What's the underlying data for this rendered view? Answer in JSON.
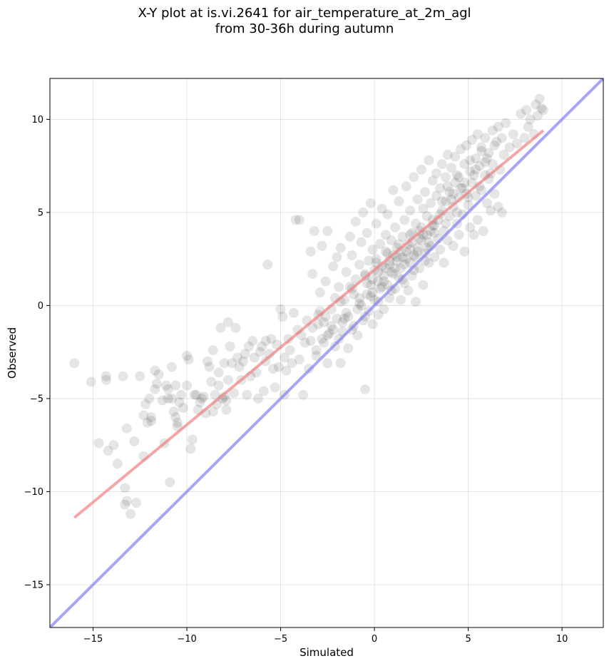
{
  "chart_data": {
    "type": "scatter",
    "title_line1": "X-Y plot at is.vi.2641 for air_temperature_at_2m_agl",
    "title_line2": "from 30-36h during autumn",
    "xlabel": "Simulated",
    "ylabel": "Observed",
    "xlim": [
      -17.3,
      12.2
    ],
    "ylim": [
      -17.3,
      12.2
    ],
    "xticks": [
      -15,
      -10,
      -5,
      0,
      5,
      10
    ],
    "yticks": [
      -15,
      -10,
      -5,
      0,
      5,
      10
    ],
    "xtick_labels": [
      "−15",
      "−10",
      "−5",
      "0",
      "5",
      "10"
    ],
    "ytick_labels": [
      "−15",
      "−10",
      "−5",
      "0",
      "5",
      "10"
    ],
    "grid": true,
    "point_color": "#000000",
    "point_alpha": 0.1,
    "fit_line": {
      "color": "#f08080",
      "x": [
        -16.0,
        9.0
      ],
      "y": [
        -11.4,
        9.4
      ]
    },
    "identity_line": {
      "color": "#8080f0",
      "x": [
        -17.3,
        12.2
      ],
      "y": [
        -17.3,
        12.2
      ]
    },
    "scatter_points": [
      [
        -16.0,
        -3.1
      ],
      [
        -15.1,
        -4.1
      ],
      [
        -14.7,
        -7.4
      ],
      [
        -14.3,
        -3.8
      ],
      [
        -14.3,
        -4.0
      ],
      [
        -14.2,
        -7.8
      ],
      [
        -13.9,
        -7.5
      ],
      [
        -13.7,
        -8.5
      ],
      [
        -13.4,
        -3.8
      ],
      [
        -13.2,
        -6.6
      ],
      [
        -13.3,
        -9.8
      ],
      [
        -13.3,
        -10.7
      ],
      [
        -13.2,
        -10.5
      ],
      [
        -13.0,
        -11.2
      ],
      [
        -12.8,
        -7.3
      ],
      [
        -12.7,
        -10.6
      ],
      [
        -12.5,
        -3.8
      ],
      [
        -12.3,
        -8.1
      ],
      [
        -12.3,
        -5.9
      ],
      [
        -12.2,
        -5.3
      ],
      [
        -12.1,
        -6.3
      ],
      [
        -12.0,
        -5.0
      ],
      [
        -11.9,
        -6.0
      ],
      [
        -11.9,
        -6.2
      ],
      [
        -11.7,
        -4.5
      ],
      [
        -11.7,
        -3.5
      ],
      [
        -11.6,
        -4.2
      ],
      [
        -11.5,
        -3.7
      ],
      [
        -11.3,
        -5.1
      ],
      [
        -11.2,
        -7.4
      ],
      [
        -11.1,
        -4.3
      ],
      [
        -11.0,
        -5.0
      ],
      [
        -11.0,
        -4.5
      ],
      [
        -10.9,
        -9.5
      ],
      [
        -10.8,
        -5.0
      ],
      [
        -10.8,
        -3.3
      ],
      [
        -10.7,
        -5.7
      ],
      [
        -10.6,
        -6.0
      ],
      [
        -10.6,
        -4.3
      ],
      [
        -10.5,
        -6.5
      ],
      [
        -10.5,
        -6.3
      ],
      [
        -10.4,
        -5.2
      ],
      [
        -10.3,
        -4.8
      ],
      [
        -10.2,
        -5.5
      ],
      [
        -10.0,
        -4.3
      ],
      [
        -10.0,
        -2.7
      ],
      [
        -9.9,
        -2.9
      ],
      [
        -9.8,
        -7.7
      ],
      [
        -9.7,
        -7.2
      ],
      [
        -9.6,
        -4.8
      ],
      [
        -9.5,
        -4.8
      ],
      [
        -9.4,
        -5.6
      ],
      [
        -9.3,
        -5.2
      ],
      [
        -9.2,
        -5.0
      ],
      [
        -9.1,
        -4.9
      ],
      [
        -9.0,
        -5.8
      ],
      [
        -8.9,
        -3.0
      ],
      [
        -8.8,
        -3.3
      ],
      [
        -8.7,
        -4.1
      ],
      [
        -8.6,
        -5.7
      ],
      [
        -8.6,
        -2.4
      ],
      [
        -8.5,
        -4.8
      ],
      [
        -8.4,
        -5.3
      ],
      [
        -8.3,
        -3.6
      ],
      [
        -8.3,
        -4.3
      ],
      [
        -8.2,
        -1.2
      ],
      [
        -8.1,
        -5.0
      ],
      [
        -8.0,
        -4.9
      ],
      [
        -8.0,
        -3.1
      ],
      [
        -7.9,
        -5.1
      ],
      [
        -7.9,
        -5.6
      ],
      [
        -7.8,
        -0.9
      ],
      [
        -7.8,
        -4.0
      ],
      [
        -7.7,
        -2.2
      ],
      [
        -7.6,
        -3.1
      ],
      [
        -7.5,
        -4.7
      ],
      [
        -7.4,
        -1.2
      ],
      [
        -7.3,
        -2.8
      ],
      [
        -7.2,
        -3.3
      ],
      [
        -7.1,
        -4.0
      ],
      [
        -7.0,
        -3.0
      ],
      [
        -6.9,
        -2.6
      ],
      [
        -6.8,
        -4.8
      ],
      [
        -6.7,
        -2.2
      ],
      [
        -6.6,
        -3.8
      ],
      [
        -6.5,
        -1.9
      ],
      [
        -6.4,
        -2.8
      ],
      [
        -6.3,
        -3.6
      ],
      [
        -6.2,
        -5.0
      ],
      [
        -6.1,
        -2.5
      ],
      [
        -6.0,
        -2.2
      ],
      [
        -5.9,
        -4.6
      ],
      [
        -5.8,
        -1.9
      ],
      [
        -5.8,
        -3.0
      ],
      [
        -5.7,
        2.2
      ],
      [
        -5.6,
        -2.6
      ],
      [
        -5.5,
        -1.8
      ],
      [
        -5.4,
        -3.4
      ],
      [
        -5.3,
        -4.4
      ],
      [
        -5.2,
        -2.1
      ],
      [
        -5.1,
        -3.3
      ],
      [
        -5.0,
        -0.2
      ],
      [
        -4.9,
        -0.6
      ],
      [
        -4.8,
        -2.8
      ],
      [
        -4.8,
        -4.8
      ],
      [
        -4.7,
        -3.5
      ],
      [
        -4.6,
        -1.8
      ],
      [
        -4.5,
        -2.4
      ],
      [
        -4.4,
        -3.1
      ],
      [
        -4.3,
        -0.4
      ],
      [
        -4.2,
        4.6
      ],
      [
        -4.1,
        -1.3
      ],
      [
        -4.0,
        4.6
      ],
      [
        -4.0,
        -2.9
      ],
      [
        -3.9,
        -1.6
      ],
      [
        -3.8,
        -4.8
      ],
      [
        -3.7,
        -2.0
      ],
      [
        -3.6,
        -0.8
      ],
      [
        -3.5,
        -3.4
      ],
      [
        -3.4,
        2.9
      ],
      [
        -3.3,
        -1.2
      ],
      [
        -3.3,
        1.7
      ],
      [
        -3.2,
        4.0
      ],
      [
        -3.1,
        -2.7
      ],
      [
        -3.0,
        -0.5
      ],
      [
        -2.9,
        0.7
      ],
      [
        -2.8,
        3.2
      ],
      [
        -2.8,
        -1.8
      ],
      [
        -2.7,
        -0.9
      ],
      [
        -2.6,
        1.3
      ],
      [
        -2.5,
        -3.1
      ],
      [
        -2.5,
        4.0
      ],
      [
        -2.4,
        -1.5
      ],
      [
        -2.3,
        -0.2
      ],
      [
        -2.2,
        2.1
      ],
      [
        -2.1,
        -2.2
      ],
      [
        -2.0,
        -0.7
      ],
      [
        -2.0,
        2.6
      ],
      [
        -1.9,
        1.0
      ],
      [
        -1.8,
        -3.1
      ],
      [
        -1.8,
        3.1
      ],
      [
        -1.7,
        -1.4
      ],
      [
        -1.6,
        0.3
      ],
      [
        -1.5,
        1.8
      ],
      [
        -1.4,
        -2.3
      ],
      [
        -1.4,
        -0.6
      ],
      [
        -1.3,
        3.7
      ],
      [
        -1.2,
        2.7
      ],
      [
        -1.2,
        0.9
      ],
      [
        -1.1,
        -1.1
      ],
      [
        -1.0,
        4.5
      ],
      [
        -1.0,
        1.4
      ],
      [
        -0.9,
        -1.6
      ],
      [
        -0.8,
        0.1
      ],
      [
        -0.8,
        2.2
      ],
      [
        -0.7,
        3.4
      ],
      [
        -0.6,
        5.0
      ],
      [
        -0.6,
        -0.8
      ],
      [
        -0.5,
        1.6
      ],
      [
        -0.5,
        -4.5
      ],
      [
        -0.4,
        0.6
      ],
      [
        -0.4,
        3.9
      ],
      [
        -0.3,
        2.4
      ],
      [
        -0.3,
        -0.3
      ],
      [
        -0.2,
        1.1
      ],
      [
        -0.2,
        5.5
      ],
      [
        -0.1,
        3.0
      ],
      [
        -0.1,
        -1.0
      ],
      [
        0.0,
        1.9
      ],
      [
        0.0,
        0.3
      ],
      [
        0.1,
        4.4
      ],
      [
        0.1,
        2.5
      ],
      [
        0.2,
        1.3
      ],
      [
        0.2,
        -0.5
      ],
      [
        0.3,
        3.3
      ],
      [
        0.3,
        0.9
      ],
      [
        0.4,
        2.1
      ],
      [
        0.4,
        5.2
      ],
      [
        0.5,
        1.6
      ],
      [
        0.5,
        -0.2
      ],
      [
        0.6,
        2.9
      ],
      [
        0.6,
        3.8
      ],
      [
        0.7,
        1.1
      ],
      [
        0.7,
        4.9
      ],
      [
        0.8,
        2.2
      ],
      [
        0.8,
        0.4
      ],
      [
        0.9,
        3.5
      ],
      [
        0.9,
        1.8
      ],
      [
        1.0,
        2.7
      ],
      [
        1.0,
        6.2
      ],
      [
        1.1,
        0.9
      ],
      [
        1.1,
        4.2
      ],
      [
        1.2,
        2.4
      ],
      [
        1.2,
        3.1
      ],
      [
        1.3,
        1.5
      ],
      [
        1.3,
        5.6
      ],
      [
        1.4,
        2.0
      ],
      [
        1.4,
        0.3
      ],
      [
        1.5,
        3.7
      ],
      [
        1.5,
        2.6
      ],
      [
        1.6,
        4.6
      ],
      [
        1.6,
        1.2
      ],
      [
        1.7,
        2.9
      ],
      [
        1.7,
        6.4
      ],
      [
        1.8,
        3.3
      ],
      [
        1.8,
        0.8
      ],
      [
        1.9,
        2.3
      ],
      [
        1.9,
        5.1
      ],
      [
        2.0,
        3.9
      ],
      [
        2.0,
        1.6
      ],
      [
        2.1,
        2.7
      ],
      [
        2.1,
        6.9
      ],
      [
        2.2,
        4.4
      ],
      [
        2.2,
        0.2
      ],
      [
        2.3,
        3.1
      ],
      [
        2.3,
        5.7
      ],
      [
        2.4,
        2.0
      ],
      [
        2.4,
        4.0
      ],
      [
        2.5,
        3.5
      ],
      [
        2.5,
        7.3
      ],
      [
        2.6,
        1.1
      ],
      [
        2.6,
        5.2
      ],
      [
        2.7,
        2.8
      ],
      [
        2.7,
        6.1
      ],
      [
        2.8,
        3.8
      ],
      [
        2.8,
        4.8
      ],
      [
        2.9,
        2.3
      ],
      [
        2.9,
        7.8
      ],
      [
        3.0,
        3.2
      ],
      [
        3.0,
        5.5
      ],
      [
        3.1,
        4.3
      ],
      [
        3.1,
        6.7
      ],
      [
        3.2,
        2.6
      ],
      [
        3.2,
        3.9
      ],
      [
        3.3,
        5.9
      ],
      [
        3.3,
        7.1
      ],
      [
        3.4,
        4.6
      ],
      [
        3.5,
        3.0
      ],
      [
        3.5,
        6.3
      ],
      [
        3.6,
        5.1
      ],
      [
        3.6,
        7.6
      ],
      [
        3.7,
        4.0
      ],
      [
        3.7,
        2.3
      ],
      [
        3.8,
        6.9
      ],
      [
        3.8,
        5.6
      ],
      [
        3.9,
        3.5
      ],
      [
        3.9,
        8.1
      ],
      [
        4.0,
        4.8
      ],
      [
        4.0,
        6.1
      ],
      [
        4.1,
        7.4
      ],
      [
        4.2,
        3.2
      ],
      [
        4.2,
        5.3
      ],
      [
        4.3,
        6.6
      ],
      [
        4.3,
        8.0
      ],
      [
        4.4,
        4.4
      ],
      [
        4.4,
        7.0
      ],
      [
        4.5,
        3.8
      ],
      [
        4.5,
        5.8
      ],
      [
        4.6,
        8.4
      ],
      [
        4.6,
        6.3
      ],
      [
        4.7,
        4.9
      ],
      [
        4.8,
        7.6
      ],
      [
        4.8,
        2.9
      ],
      [
        4.9,
        6.0
      ],
      [
        4.9,
        8.6
      ],
      [
        5.0,
        5.4
      ],
      [
        5.1,
        7.2
      ],
      [
        5.1,
        4.2
      ],
      [
        5.2,
        8.9
      ],
      [
        5.2,
        6.6
      ],
      [
        5.3,
        3.8
      ],
      [
        5.4,
        7.9
      ],
      [
        5.4,
        5.9
      ],
      [
        5.5,
        9.2
      ],
      [
        5.5,
        4.6
      ],
      [
        5.6,
        7.5
      ],
      [
        5.7,
        6.2
      ],
      [
        5.7,
        8.5
      ],
      [
        5.8,
        4.0
      ],
      [
        5.9,
        7.0
      ],
      [
        5.9,
        9.0
      ],
      [
        6.0,
        5.5
      ],
      [
        6.1,
        8.2
      ],
      [
        6.1,
        6.8
      ],
      [
        6.2,
        5.1
      ],
      [
        6.3,
        9.4
      ],
      [
        6.3,
        7.6
      ],
      [
        6.4,
        6.0
      ],
      [
        6.5,
        8.8
      ],
      [
        6.6,
        5.3
      ],
      [
        6.6,
        9.6
      ],
      [
        6.7,
        7.3
      ],
      [
        6.8,
        5.0
      ],
      [
        6.8,
        9.0
      ],
      [
        6.9,
        8.1
      ],
      [
        7.0,
        9.8
      ],
      [
        7.2,
        8.5
      ],
      [
        7.4,
        9.2
      ],
      [
        7.6,
        8.7
      ],
      [
        7.8,
        10.3
      ],
      [
        8.0,
        9.0
      ],
      [
        8.1,
        10.5
      ],
      [
        8.2,
        9.6
      ],
      [
        8.3,
        10.0
      ],
      [
        8.5,
        9.2
      ],
      [
        8.7,
        10.2
      ],
      [
        8.8,
        11.1
      ],
      [
        8.9,
        10.6
      ],
      [
        9.0,
        10.5
      ],
      [
        8.6,
        10.8
      ],
      [
        -3.0,
        -1.0
      ],
      [
        -2.6,
        -0.6
      ],
      [
        -2.2,
        -1.3
      ],
      [
        -1.8,
        0.2
      ],
      [
        -1.5,
        -0.4
      ],
      [
        -1.1,
        0.6
      ],
      [
        -0.7,
        0.0
      ],
      [
        -0.4,
        1.2
      ],
      [
        -0.1,
        0.7
      ],
      [
        0.2,
        1.8
      ],
      [
        0.5,
        1.3
      ],
      [
        0.8,
        2.4
      ],
      [
        1.1,
        2.0
      ],
      [
        1.4,
        2.9
      ],
      [
        1.7,
        2.5
      ],
      [
        2.0,
        3.4
      ],
      [
        2.3,
        2.9
      ],
      [
        2.6,
        3.8
      ],
      [
        2.9,
        3.4
      ],
      [
        3.2,
        4.3
      ],
      [
        -2.9,
        -0.3
      ],
      [
        -2.5,
        -1.6
      ],
      [
        -2.1,
        0.4
      ],
      [
        -1.7,
        -0.9
      ],
      [
        -1.3,
        1.0
      ],
      [
        -0.9,
        -0.2
      ],
      [
        -0.5,
        1.7
      ],
      [
        -0.2,
        0.5
      ],
      [
        0.1,
        2.3
      ],
      [
        0.4,
        1.0
      ],
      [
        0.7,
        2.8
      ],
      [
        1.0,
        1.7
      ],
      [
        1.3,
        3.3
      ],
      [
        1.6,
        2.2
      ],
      [
        1.9,
        3.8
      ],
      [
        2.2,
        2.6
      ],
      [
        2.5,
        4.2
      ],
      [
        2.8,
        3.1
      ],
      [
        3.1,
        4.6
      ],
      [
        3.4,
        3.6
      ],
      [
        -3.4,
        -1.9
      ],
      [
        -3.1,
        -2.4
      ],
      [
        -2.7,
        -2.0
      ],
      [
        -2.3,
        -1.1
      ],
      [
        -1.9,
        -1.8
      ],
      [
        -1.6,
        -0.7
      ],
      [
        -1.2,
        -1.3
      ],
      [
        -0.8,
        0.4
      ],
      [
        -0.5,
        -0.6
      ],
      [
        -0.1,
        1.4
      ],
      [
        0.2,
        0.2
      ],
      [
        0.6,
        2.0
      ],
      [
        0.9,
        0.8
      ],
      [
        1.2,
        2.6
      ],
      [
        1.5,
        1.4
      ],
      [
        1.9,
        3.0
      ],
      [
        2.1,
        1.9
      ],
      [
        2.4,
        3.6
      ],
      [
        2.7,
        2.4
      ],
      [
        3.0,
        4.0
      ],
      [
        3.5,
        4.9
      ],
      [
        3.8,
        4.4
      ],
      [
        4.1,
        5.7
      ],
      [
        4.4,
        5.0
      ],
      [
        4.7,
        6.3
      ],
      [
        5.0,
        5.8
      ],
      [
        5.3,
        7.0
      ],
      [
        5.6,
        6.4
      ],
      [
        5.9,
        7.7
      ],
      [
        6.2,
        7.1
      ],
      [
        3.6,
        5.6
      ],
      [
        3.9,
        6.4
      ],
      [
        4.2,
        6.0
      ],
      [
        4.5,
        6.9
      ],
      [
        4.8,
        6.6
      ],
      [
        5.1,
        7.8
      ],
      [
        5.4,
        7.3
      ],
      [
        5.7,
        8.3
      ],
      [
        6.0,
        7.9
      ],
      [
        6.4,
        8.6
      ]
    ]
  }
}
